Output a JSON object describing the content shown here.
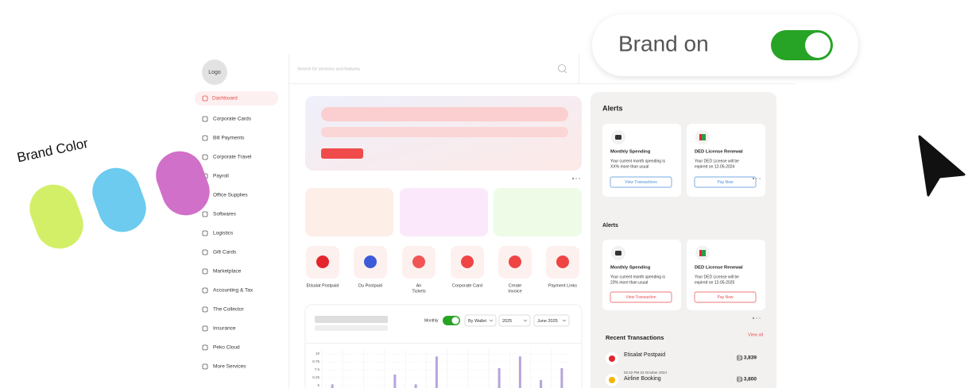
{
  "brand_color_label": "Brand Color",
  "swatches": [
    {
      "color": "#d3ef68"
    },
    {
      "color": "#6ccbef"
    },
    {
      "color": "#d170c9"
    }
  ],
  "toggle": {
    "label": "Brand on",
    "on": true,
    "color": "#27a325"
  },
  "sidebar": {
    "logo": "Logo",
    "active": 0,
    "items": [
      "Dashboard",
      "Corporate Cards",
      "Bill Payments",
      "Corporate Travel",
      "Payroll",
      "Office Supplies",
      "Softwares",
      "Logistics",
      "Gift Cards",
      "Marketplace",
      "Accounting & Tax",
      "The Collector",
      "Insurance",
      "Peko Cloud",
      "More Services"
    ]
  },
  "search": {
    "placeholder": "Search for services and features"
  },
  "services": [
    {
      "label": [
        "Etisalat Postpaid"
      ]
    },
    {
      "label": [
        "Du Postpaid"
      ]
    },
    {
      "label": [
        "Air",
        "Tickets"
      ]
    },
    {
      "label": [
        "Corporate Card"
      ]
    },
    {
      "label": [
        "Create",
        "Invoice"
      ]
    },
    {
      "label": [
        "Payment Links"
      ]
    }
  ],
  "chart": {
    "type": "bar",
    "toggle_label": "Monthly",
    "filters": [
      "By Wallet",
      "2025",
      "June 2025"
    ],
    "color": "#b7a4dc",
    "categories": [
      null,
      null,
      null,
      null,
      null,
      null,
      null,
      null,
      null,
      null,
      null,
      null
    ],
    "values": [
      5.2,
      null,
      null,
      6.75,
      5.2,
      9.6,
      null,
      null,
      7.75,
      9.6,
      5.9,
      7.75
    ],
    "ylim": [
      4.75,
      10
    ],
    "yticks": [
      10,
      8.75,
      7.5,
      6.25,
      5
    ]
  },
  "alerts": [
    {
      "title": "Alerts",
      "accent": "#4a90d9",
      "cards": [
        {
          "title": "Monthly Spending",
          "body": [
            "Your current month spending is",
            "XX% more than usual"
          ],
          "button": "View Transactions"
        },
        {
          "title": "DED License Renewal",
          "body": [
            "Your DED License  will be",
            "expired on 12-05-2024"
          ],
          "button": "Pay Now"
        }
      ]
    },
    {
      "title": "Alerts",
      "accent": "#e94b4b",
      "cards": [
        {
          "title": "Monthly Spending",
          "body": [
            "Your current month spending is",
            "23% more than usual"
          ],
          "button": "View Transaction"
        },
        {
          "title": "DED License Renewal",
          "body": [
            "Your DED License  will be",
            "expired on 12-05-2025"
          ],
          "button": "Pay Now"
        }
      ]
    }
  ],
  "recent": {
    "title": "Recent Transactions",
    "view_all": "View all",
    "items": [
      {
        "name": "Etisalat Postpaid",
        "amount": "3,839"
      },
      {
        "time": "02:22 PM    22 October 2024",
        "name": "Airline Booking",
        "amount": "3,800"
      }
    ]
  }
}
